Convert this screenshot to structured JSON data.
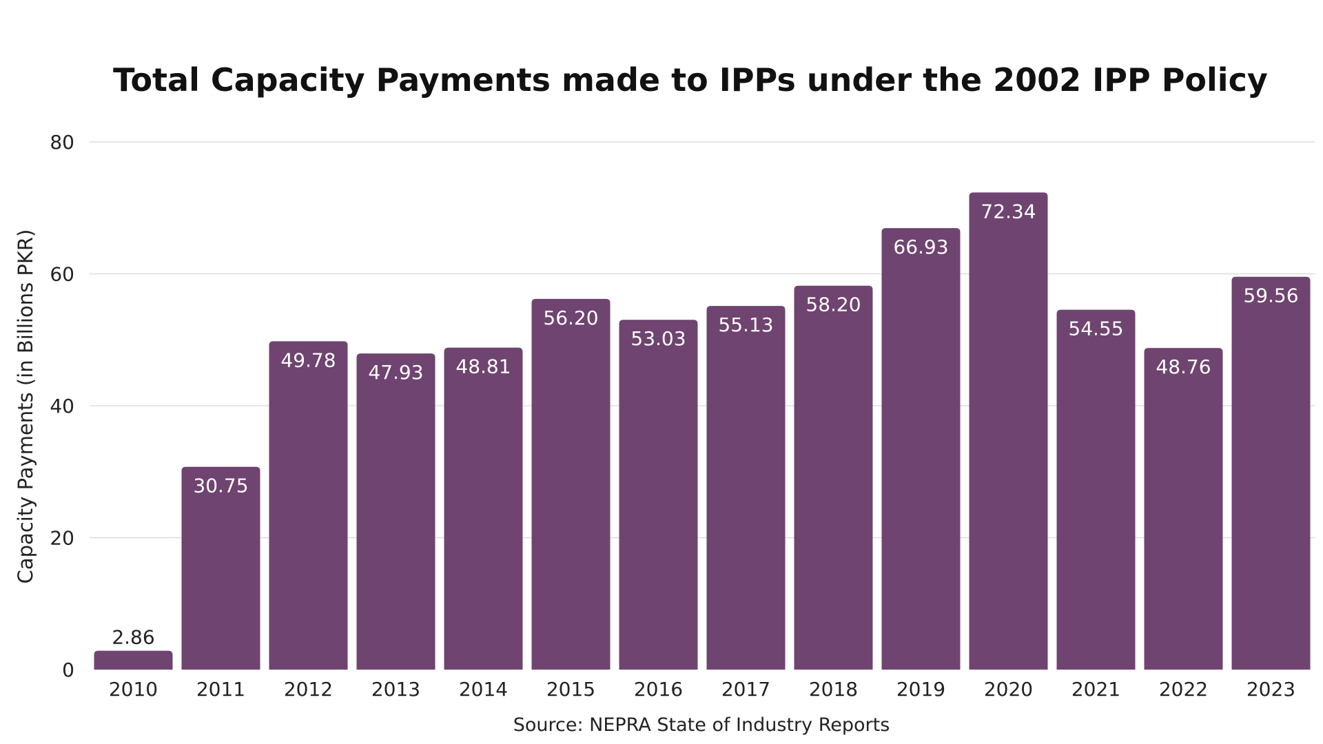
{
  "chart_data": {
    "type": "bar",
    "title": "Total Capacity Payments made to IPPs under the 2002 IPP Policy",
    "xlabel": "",
    "ylabel": "Capacity Payments (in Billions PKR)",
    "source": "Source: NEPRA State of Industry Reports",
    "categories": [
      "2010",
      "2011",
      "2012",
      "2013",
      "2014",
      "2015",
      "2016",
      "2017",
      "2018",
      "2019",
      "2020",
      "2021",
      "2022",
      "2023"
    ],
    "values": [
      2.86,
      30.75,
      49.78,
      47.93,
      48.81,
      56.2,
      53.03,
      55.13,
      58.2,
      66.93,
      72.34,
      54.55,
      48.76,
      59.56
    ],
    "value_labels": [
      "2.86",
      "30.75",
      "49.78",
      "47.93",
      "48.81",
      "56.20",
      "53.03",
      "55.13",
      "58.20",
      "66.93",
      "72.34",
      "54.55",
      "48.76",
      "59.56"
    ],
    "ylim": [
      0,
      80
    ],
    "yticks": [
      "0",
      "20",
      "40",
      "60",
      "80"
    ],
    "grid": true,
    "legend": "none",
    "bar_color": "#6f4470"
  }
}
